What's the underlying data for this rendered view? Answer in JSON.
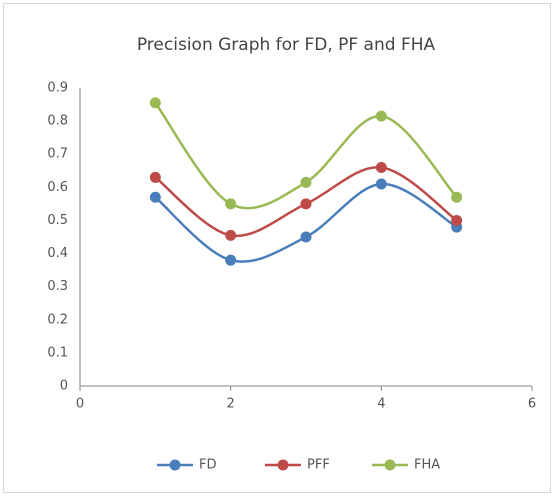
{
  "chart_data": {
    "type": "scatter",
    "smooth": true,
    "grid": false,
    "title": "Precision Graph for FD, PF and FHA",
    "x": [
      1,
      2,
      3,
      4,
      5
    ],
    "series": [
      {
        "name": "FD",
        "color": "#4a7ebb",
        "values": [
          0.57,
          0.38,
          0.45,
          0.61,
          0.48
        ]
      },
      {
        "name": "PFF",
        "color": "#be4b48",
        "values": [
          0.63,
          0.455,
          0.55,
          0.66,
          0.5
        ]
      },
      {
        "name": "FHA",
        "color": "#98b954",
        "values": [
          0.855,
          0.55,
          0.615,
          0.815,
          0.57
        ]
      }
    ],
    "xlim": [
      0,
      6
    ],
    "xticks": [
      0,
      2,
      4,
      6
    ],
    "ylim": [
      0,
      0.9
    ],
    "yticks": [
      0,
      0.1,
      0.2,
      0.3,
      0.4,
      0.5,
      0.6,
      0.7,
      0.8,
      0.9
    ],
    "legend": "bottom"
  }
}
